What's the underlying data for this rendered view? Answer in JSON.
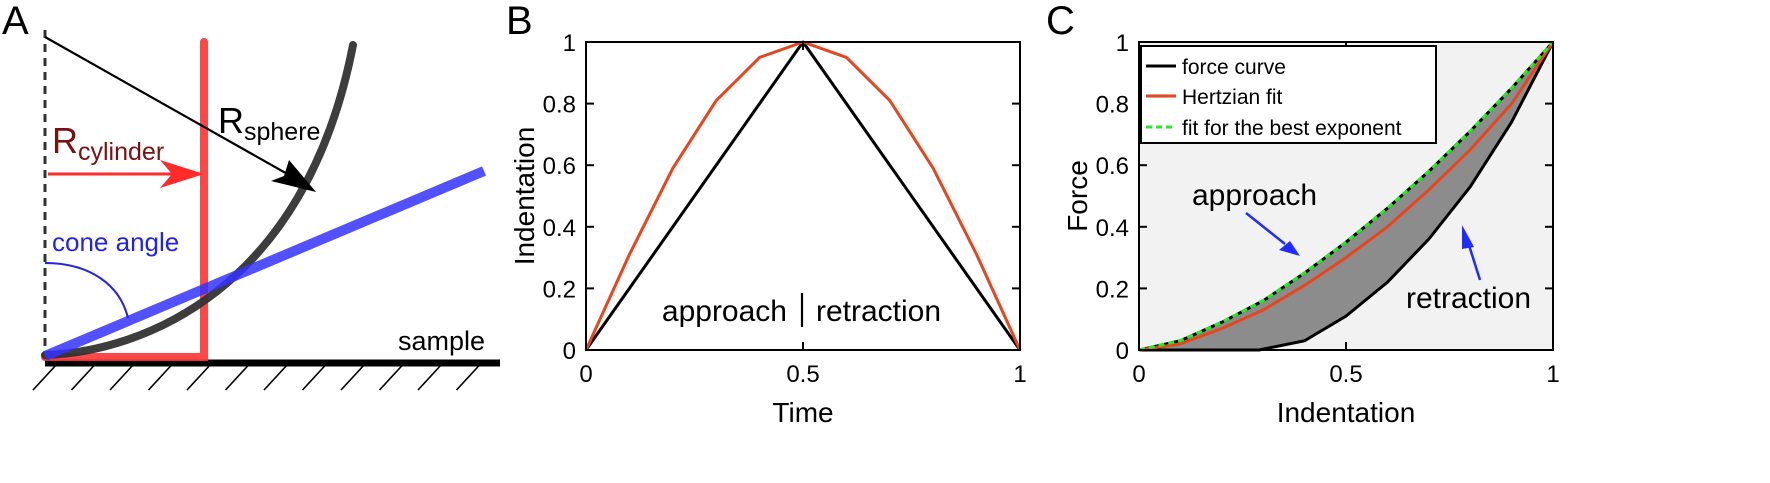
{
  "panels": {
    "A": {
      "letter": "A",
      "labels": {
        "r_cylinder_main": "R",
        "r_cylinder_sub": "cylinder",
        "r_sphere_main": "R",
        "r_sphere_sub": "sphere",
        "cone_angle": "cone angle",
        "sample": "sample"
      },
      "colors": {
        "cylinder": "#ff3333",
        "sphere": "#333333",
        "cone": "#3333ff",
        "cylinder_label": "#7a1010",
        "cone_label": "#2222ee"
      }
    },
    "B": {
      "letter": "B",
      "annotation_left": "approach",
      "annotation_right": "retraction"
    },
    "C": {
      "letter": "C",
      "annotation_approach": "approach",
      "annotation_retraction": "retraction",
      "legend": [
        "force curve",
        "Hertzian fit",
        "fit for the best exponent"
      ]
    }
  },
  "chart_data": [
    {
      "type": "line",
      "panel": "B",
      "xlabel": "Time",
      "ylabel": "Indentation",
      "xlim": [
        0,
        1
      ],
      "ylim": [
        0,
        1
      ],
      "xticks": [
        "0",
        "0.5",
        "1"
      ],
      "yticks": [
        "0",
        "0.2",
        "0.4",
        "0.6",
        "0.8",
        "1"
      ],
      "series": [
        {
          "color": "#000000",
          "x": [
            0,
            0.5,
            1
          ],
          "y": [
            0,
            1,
            0
          ]
        },
        {
          "color": "#e8451e",
          "x": [
            0,
            0.1,
            0.2,
            0.3,
            0.4,
            0.5,
            0.6,
            0.7,
            0.8,
            0.9,
            1
          ],
          "y": [
            0,
            0.31,
            0.59,
            0.81,
            0.95,
            1,
            0.95,
            0.81,
            0.59,
            0.31,
            0
          ]
        }
      ]
    },
    {
      "type": "line",
      "panel": "C",
      "xlabel": "Indentation",
      "ylabel": "Force",
      "xlim": [
        0,
        1
      ],
      "ylim": [
        0,
        1
      ],
      "xticks": [
        "0",
        "0.5",
        "1"
      ],
      "yticks": [
        "0",
        "0.2",
        "0.4",
        "0.6",
        "0.8",
        "1"
      ],
      "legend_position": "top-left",
      "series": [
        {
          "name": "force curve",
          "color": "#000000",
          "x": [
            0,
            0.1,
            0.2,
            0.3,
            0.4,
            0.5,
            0.6,
            0.7,
            0.8,
            0.9,
            1
          ],
          "y": [
            0,
            0.03,
            0.09,
            0.16,
            0.25,
            0.35,
            0.46,
            0.58,
            0.71,
            0.85,
            1
          ]
        },
        {
          "name": "force curve",
          "color": "#000000",
          "x": [
            0,
            0.29,
            0.4,
            0.5,
            0.6,
            0.7,
            0.8,
            0.9,
            1
          ],
          "y": [
            0,
            0,
            0.03,
            0.11,
            0.22,
            0.36,
            0.53,
            0.74,
            1
          ]
        },
        {
          "name": "Hertzian fit",
          "color": "#e8451e",
          "x": [
            0,
            0.1,
            0.2,
            0.3,
            0.4,
            0.5,
            0.6,
            0.7,
            0.8,
            0.9,
            1
          ],
          "y": [
            0,
            0.02,
            0.07,
            0.13,
            0.21,
            0.3,
            0.4,
            0.52,
            0.65,
            0.8,
            1
          ]
        },
        {
          "name": "fit for the best exponent",
          "color": "#22cc22",
          "x": [
            0,
            0.1,
            0.2,
            0.3,
            0.4,
            0.5,
            0.6,
            0.7,
            0.8,
            0.9,
            1
          ],
          "y": [
            0,
            0.03,
            0.09,
            0.16,
            0.25,
            0.35,
            0.46,
            0.58,
            0.71,
            0.85,
            1
          ]
        }
      ],
      "fill": {
        "between": [
          "approach",
          "retraction"
        ],
        "color": "#8c8c8c",
        "outside_color": "#f2f2f2"
      }
    }
  ]
}
